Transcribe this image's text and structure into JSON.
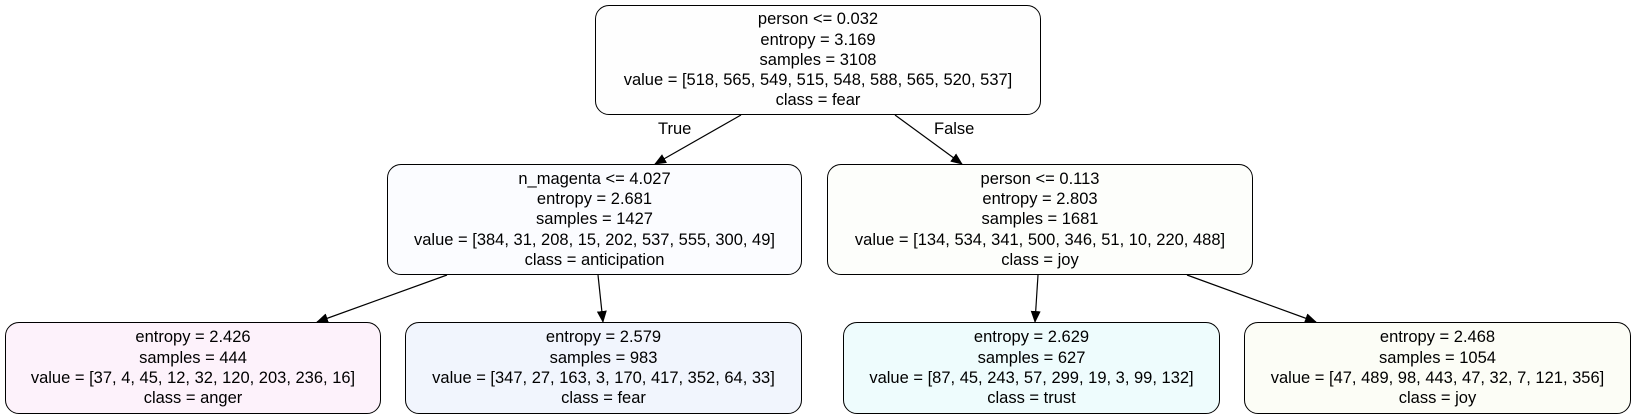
{
  "colors": {
    "root": "#fefefe",
    "anticipation_node": "#fbfcff",
    "joy_internal": "#fdfefb",
    "anger": "#fdf2fb",
    "fear": "#f1f5fd",
    "trust": "#eefcfd",
    "joy_leaf": "#fcfdf6",
    "edge": "#000000"
  },
  "edges": {
    "true_label": "True",
    "false_label": "False"
  },
  "nodes": [
    {
      "id": "root",
      "condition": "person <= 0.032",
      "entropy": "entropy = 3.169",
      "samples": "samples = 3108",
      "value": "value = [518, 565, 549, 515, 548, 588, 565, 520, 537]",
      "class": "class = fear"
    },
    {
      "id": "left",
      "condition": "n_magenta <= 4.027",
      "entropy": "entropy = 2.681",
      "samples": "samples = 1427",
      "value": "value = [384, 31, 208, 15, 202, 537, 555, 300, 49]",
      "class": "class = anticipation"
    },
    {
      "id": "right",
      "condition": "person <= 0.113",
      "entropy": "entropy = 2.803",
      "samples": "samples = 1681",
      "value": "value = [134, 534, 341, 500, 346, 51, 10, 220, 488]",
      "class": "class = joy"
    },
    {
      "id": "leaf-ll",
      "entropy": "entropy = 2.426",
      "samples": "samples = 444",
      "value": "value = [37, 4, 45, 12, 32, 120, 203, 236, 16]",
      "class": "class = anger"
    },
    {
      "id": "leaf-lr",
      "entropy": "entropy = 2.579",
      "samples": "samples = 983",
      "value": "value = [347, 27, 163, 3, 170, 417, 352, 64, 33]",
      "class": "class = fear"
    },
    {
      "id": "leaf-rl",
      "entropy": "entropy = 2.629",
      "samples": "samples = 627",
      "value": "value = [87, 45, 243, 57, 299, 19, 3, 99, 132]",
      "class": "class = trust"
    },
    {
      "id": "leaf-rr",
      "entropy": "entropy = 2.468",
      "samples": "samples = 1054",
      "value": "value = [47, 489, 98, 443, 47, 32, 7, 121, 356]",
      "class": "class = joy"
    }
  ]
}
